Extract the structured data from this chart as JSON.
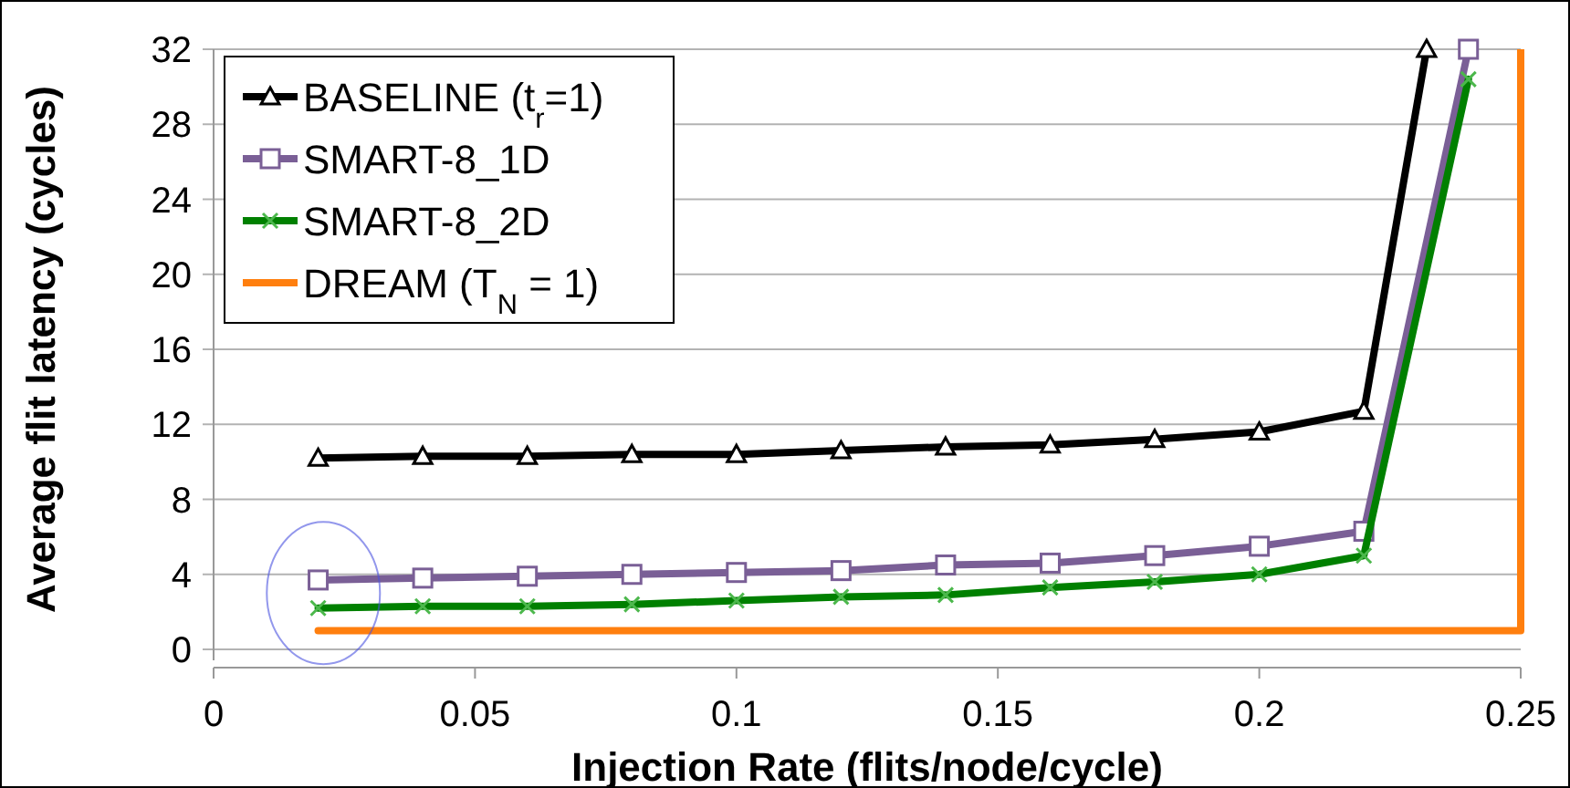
{
  "chart_data": {
    "type": "line",
    "xlabel": "Injection Rate (flits/node/cycle)",
    "ylabel": "Average flit latency (cycles)",
    "xlim": [
      0,
      0.25
    ],
    "xticks": [
      0,
      0.05,
      0.1,
      0.15,
      0.2,
      0.25
    ],
    "ylim": [
      0,
      32
    ],
    "yticks": [
      0,
      4,
      8,
      12,
      16,
      20,
      24,
      28,
      32
    ],
    "grid": "y",
    "legend": "top left",
    "series": [
      {
        "name": "BASELINE (t$_{r}$=1)",
        "color": "#000000",
        "marker": "triangle",
        "x": [
          0.02,
          0.04,
          0.06,
          0.08,
          0.1,
          0.12,
          0.14,
          0.16,
          0.18,
          0.2,
          0.22,
          0.232
        ],
        "values": [
          10.2,
          10.3,
          10.3,
          10.4,
          10.4,
          10.6,
          10.8,
          10.9,
          11.2,
          11.6,
          12.7,
          32
        ]
      },
      {
        "name": "SMART-8_1D",
        "color": "#7a5f96",
        "marker": "square",
        "x": [
          0.02,
          0.04,
          0.06,
          0.08,
          0.1,
          0.12,
          0.14,
          0.16,
          0.18,
          0.2,
          0.22,
          0.24
        ],
        "values": [
          3.7,
          3.8,
          3.9,
          4.0,
          4.1,
          4.2,
          4.5,
          4.6,
          5.0,
          5.5,
          6.3,
          32
        ]
      },
      {
        "name": "SMART-8_2D",
        "color": "#008000",
        "marker": "cross",
        "x": [
          0.02,
          0.04,
          0.06,
          0.08,
          0.1,
          0.12,
          0.14,
          0.16,
          0.18,
          0.2,
          0.22,
          0.24
        ],
        "values": [
          2.2,
          2.3,
          2.3,
          2.4,
          2.6,
          2.8,
          2.9,
          3.3,
          3.6,
          4.0,
          5.0,
          30.4
        ]
      },
      {
        "name": "DREAM (T$_{N}$ = 1)",
        "color": "#ff7f0e",
        "marker": "none",
        "x": [
          0.02,
          0.25
        ],
        "values": [
          1,
          1
        ]
      }
    ],
    "ref_lines": [
      {
        "axis": "x",
        "value": 0.25,
        "color": "#ff7f0e"
      }
    ]
  }
}
